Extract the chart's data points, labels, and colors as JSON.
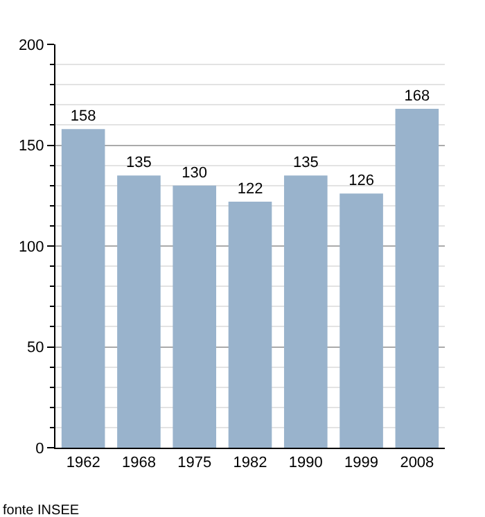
{
  "chart_data": {
    "type": "bar",
    "categories": [
      "1962",
      "1968",
      "1975",
      "1982",
      "1990",
      "1999",
      "2008"
    ],
    "values": [
      158,
      135,
      130,
      122,
      135,
      126,
      168
    ],
    "color": "#99b3cc",
    "ylim": [
      0,
      200
    ],
    "yticks": [
      0,
      50,
      100,
      150,
      200
    ],
    "grid": "y",
    "data_labels": true,
    "annotations": [
      "fonte INSEE"
    ]
  }
}
